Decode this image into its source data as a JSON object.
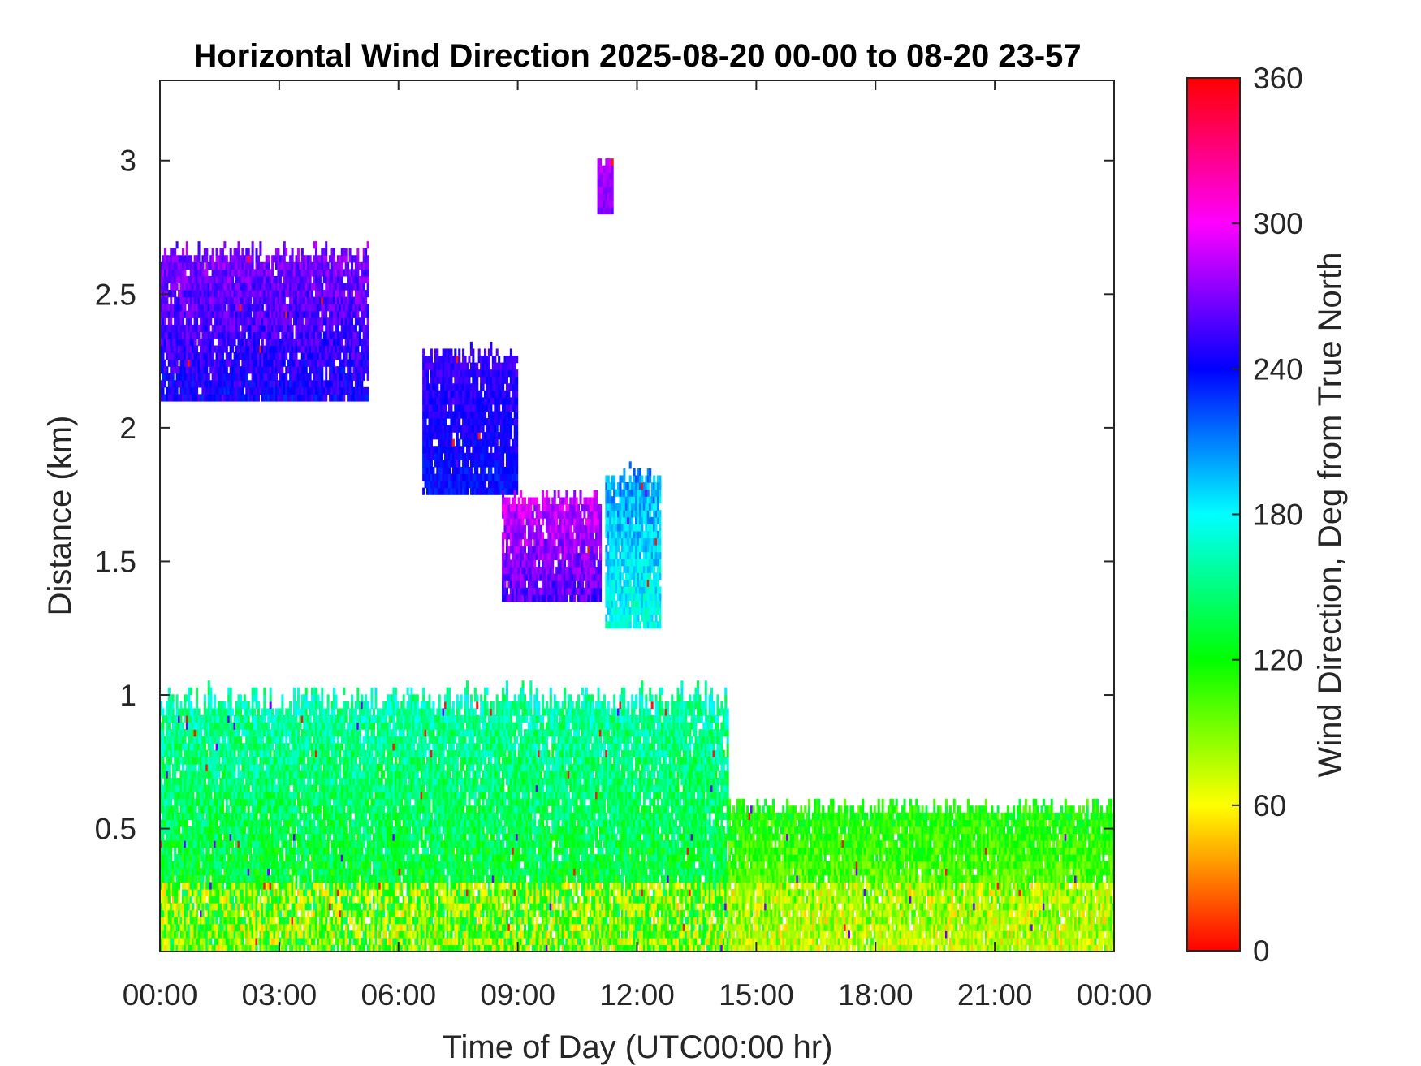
{
  "chart_data": {
    "type": "heatmap",
    "title": "Horizontal Wind Direction 2025-08-20 00-00 to 08-20 23-57",
    "xlabel": "Time of Day (UTC00:00 hr)",
    "ylabel": "Distance (km)",
    "colorbar_label": "Wind Direction, Deg from True North",
    "x_tick_labels": [
      "00:00",
      "03:00",
      "06:00",
      "09:00",
      "12:00",
      "15:00",
      "18:00",
      "21:00",
      "00:00"
    ],
    "x_tick_hours": [
      0,
      3,
      6,
      9,
      12,
      15,
      18,
      21,
      24
    ],
    "xlim_hours": [
      0,
      24
    ],
    "y_tick_labels": [
      "0.5",
      "1",
      "1.5",
      "2",
      "2.5",
      "3"
    ],
    "y_tick_values": [
      0.5,
      1,
      1.5,
      2,
      2.5,
      3
    ],
    "ylim": [
      0.04,
      3.3
    ],
    "colorbar_ticks": [
      "0",
      "60",
      "120",
      "180",
      "240",
      "300",
      "360"
    ],
    "colorbar_range": [
      0,
      360
    ],
    "colormap": "hsv",
    "grid": false,
    "approx_regions": [
      {
        "desc": "near-surface layer",
        "x_hours": [
          0,
          14.3
        ],
        "y_km": [
          0.04,
          1.03
        ],
        "direction_deg": [
          90,
          175
        ]
      },
      {
        "desc": "upper layer",
        "x_hours": [
          0,
          5.2
        ],
        "y_km": [
          2.1,
          2.68
        ],
        "direction_deg": [
          225,
          280
        ]
      },
      {
        "desc": "mid cloud",
        "x_hours": [
          6.6,
          9
        ],
        "y_km": [
          1.75,
          2.3
        ],
        "direction_deg": [
          225,
          260
        ]
      },
      {
        "desc": "mid cloud",
        "x_hours": [
          8.6,
          11.1
        ],
        "y_km": [
          1.35,
          1.75
        ],
        "direction_deg": [
          240,
          300
        ]
      },
      {
        "desc": "mid cloud",
        "x_hours": [
          11.2,
          12.6
        ],
        "y_km": [
          1.25,
          1.85
        ],
        "direction_deg": [
          150,
          215
        ]
      },
      {
        "desc": "high patch",
        "x_hours": [
          11,
          11.4
        ],
        "y_km": [
          2.8,
          3.0
        ],
        "direction_deg": [
          260,
          290
        ]
      },
      {
        "desc": "afternoon layer",
        "x_hours": [
          14.3,
          24
        ],
        "y_km": [
          0.04,
          0.6
        ],
        "direction_deg": [
          60,
          130
        ]
      }
    ]
  }
}
